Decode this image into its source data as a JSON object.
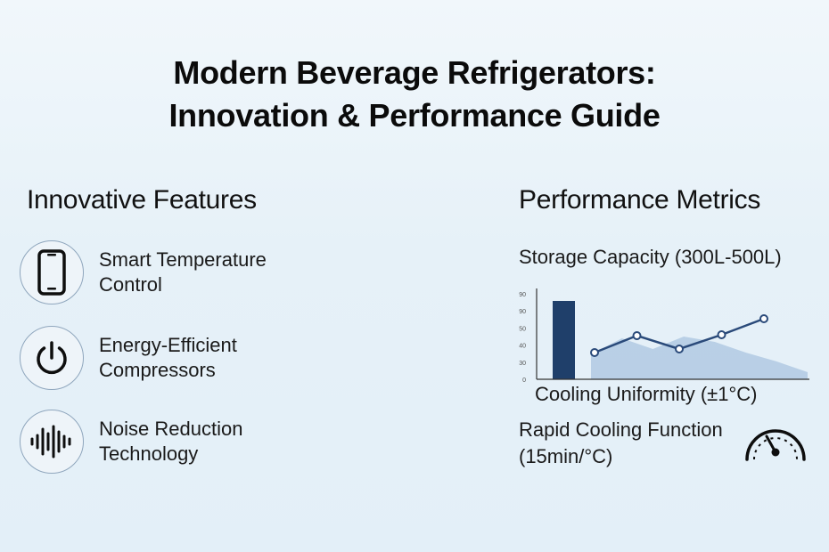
{
  "title": {
    "line1": "Modern Beverage Refrigerators:",
    "line2": "Innovation & Performance Guide"
  },
  "features": {
    "heading": "Innovative Features",
    "items": [
      {
        "icon": "smartphone-icon",
        "line1": "Smart Temperature",
        "line2": "Control"
      },
      {
        "icon": "power-icon",
        "line1": "Energy-Efficient",
        "line2": "Compressors"
      },
      {
        "icon": "sound-wave-icon",
        "line1": "Noise Reduction",
        "line2": "Technology"
      }
    ]
  },
  "metrics": {
    "heading": "Performance Metrics",
    "storage_capacity": "Storage Capacity (300L-500L)",
    "cooling_uniformity": "Cooling Uniformity (±1°C)",
    "rapid_cooling_line1": "Rapid Cooling Function",
    "rapid_cooling_line2": "(15min/°C)",
    "gauge_icon": "speedometer-gauge-icon"
  },
  "chart_data": {
    "type": "line",
    "y_tick_labels": [
      "0",
      "30",
      "40",
      "50",
      "90",
      "90"
    ],
    "bar": {
      "value": 88
    },
    "line_points": [
      30,
      49,
      34,
      50,
      68
    ],
    "area_profile": [
      28,
      46,
      34,
      48,
      42,
      30,
      20,
      8
    ],
    "grid": false,
    "colors": {
      "bar": "#1f3f6a",
      "line": "#2a4a7a",
      "area": "#a9c4e0",
      "axis": "#333333"
    }
  }
}
